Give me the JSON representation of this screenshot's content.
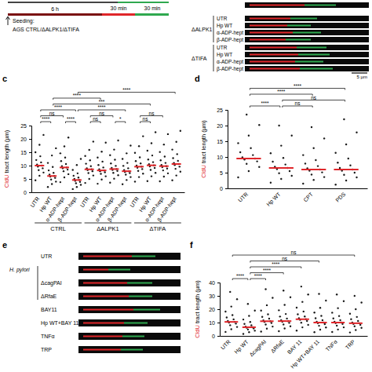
{
  "chart_data": [
    {
      "type": "scatter",
      "title": "c",
      "y_label": "CldU tract length (µm)",
      "categories": [
        "UTR",
        "Hp WT",
        "α-ADP-hept",
        "β-ADP-hept",
        "UTR",
        "Hp WT",
        "α-ADP-hept",
        "β-ADP-hept",
        "UTR",
        "Hp WT",
        "α-ADP-hept",
        "β-ADP-hept"
      ],
      "groups": [
        {
          "label": "CTRL",
          "from": 0,
          "to": 3
        },
        {
          "label": "ΔALPK1",
          "from": 4,
          "to": 7
        },
        {
          "label": "ΔTIFA",
          "from": 8,
          "to": 11
        }
      ],
      "points": [
        [
          4.5,
          6.2,
          7.4,
          8.3,
          9.0,
          9.6,
          10.0,
          10.4,
          11.2,
          12.1,
          13.5,
          15.0,
          17.8,
          21.5
        ],
        [
          2.0,
          3.1,
          4.0,
          4.8,
          5.4,
          5.9,
          6.1,
          6.6,
          7.3,
          8.2,
          9.5,
          11.0,
          13.8,
          16.5
        ],
        [
          3.8,
          5.6,
          6.8,
          7.9,
          8.5,
          9.0,
          9.3,
          9.8,
          10.6,
          11.7,
          13.0,
          14.6,
          17.2,
          20.5
        ],
        [
          1.2,
          2.0,
          2.8,
          3.4,
          3.9,
          4.3,
          4.6,
          5.0,
          5.5,
          6.2,
          7.1,
          8.4,
          10.2,
          12.5
        ],
        [
          3.5,
          5.0,
          6.3,
          7.2,
          7.9,
          8.3,
          8.6,
          9.0,
          9.8,
          10.7,
          12.0,
          13.6,
          15.9,
          19.0
        ],
        [
          3.2,
          4.8,
          6.0,
          6.9,
          7.5,
          7.9,
          8.2,
          8.6,
          9.3,
          10.2,
          11.5,
          13.0,
          15.2,
          18.6
        ],
        [
          3.6,
          5.1,
          6.4,
          7.3,
          8.0,
          8.4,
          8.7,
          9.1,
          9.9,
          10.8,
          12.2,
          13.9,
          16.0,
          19.4
        ],
        [
          3.0,
          4.6,
          5.7,
          6.6,
          7.2,
          7.6,
          7.9,
          8.3,
          9.0,
          9.9,
          11.0,
          12.5,
          14.6,
          17.5
        ],
        [
          4.0,
          5.7,
          7.0,
          8.0,
          8.7,
          9.2,
          9.6,
          10.0,
          10.8,
          11.7,
          13.1,
          14.8,
          17.3,
          21.0
        ],
        [
          4.2,
          6.0,
          7.3,
          8.4,
          9.1,
          9.7,
          10.1,
          10.5,
          11.3,
          12.3,
          13.8,
          15.6,
          18.4,
          22.5
        ],
        [
          4.1,
          5.9,
          7.1,
          8.2,
          8.9,
          9.4,
          9.8,
          10.2,
          11.0,
          12.0,
          13.4,
          15.1,
          17.9,
          21.8
        ],
        [
          4.5,
          6.3,
          7.7,
          8.8,
          9.6,
          10.2,
          10.6,
          11.0,
          11.8,
          12.8,
          14.3,
          16.0,
          18.9,
          23.0
        ]
      ],
      "medians": [
        10.0,
        6.1,
        9.3,
        4.6,
        8.6,
        8.2,
        8.7,
        7.9,
        9.6,
        10.1,
        9.8,
        10.6
      ],
      "color": "#1a1a1a",
      "ylim": [
        0,
        25
      ],
      "yticks": [
        0,
        5,
        10,
        15,
        20,
        25
      ],
      "comparisons": [
        {
          "from": 0,
          "to": 1,
          "label": "****"
        },
        {
          "from": 2,
          "to": 3,
          "label": "****"
        },
        {
          "from": 4,
          "to": 5,
          "label": "ns"
        },
        {
          "from": 6,
          "to": 7,
          "label": "*"
        },
        {
          "from": 8,
          "to": 9,
          "label": "ns"
        },
        {
          "from": 0,
          "to": 2,
          "label": "ns"
        },
        {
          "from": 4,
          "to": 6,
          "label": "ns"
        },
        {
          "from": 8,
          "to": 10,
          "label": "ns"
        },
        {
          "from": 0,
          "to": 3,
          "label": "****"
        },
        {
          "from": 1,
          "to": 9,
          "label": "***"
        },
        {
          "from": 1,
          "to": 5,
          "label": "****"
        },
        {
          "from": 3,
          "to": 7,
          "label": "****"
        },
        {
          "from": 3,
          "to": 11,
          "label": "****"
        }
      ]
    },
    {
      "type": "scatter",
      "title": "d",
      "y_label": "CldU tract length (µm)",
      "categories": [
        "UTR",
        "Hp WT",
        "CPT",
        "PDS"
      ],
      "points": [
        [
          3.5,
          5.5,
          6.8,
          7.8,
          8.6,
          9.2,
          9.5,
          9.9,
          10.6,
          11.5,
          12.8,
          14.4,
          16.8,
          20.2,
          23.5
        ],
        [
          1.8,
          3.0,
          4.0,
          4.8,
          5.5,
          6.1,
          6.5,
          6.9,
          7.6,
          8.5,
          9.7,
          11.2,
          13.6,
          16.8,
          20.0
        ],
        [
          1.5,
          2.7,
          3.6,
          4.4,
          5.1,
          5.6,
          6.0,
          6.4,
          7.1,
          7.9,
          9.0,
          10.6,
          12.8,
          15.9,
          19.5
        ],
        [
          1.2,
          2.5,
          3.5,
          4.3,
          5.0,
          5.6,
          6.0,
          6.5,
          7.3,
          8.2,
          9.5,
          11.3,
          14.0,
          17.8,
          22.0
        ]
      ],
      "medians": [
        9.5,
        6.5,
        6.0,
        6.0
      ],
      "color": "#1a1a1a",
      "ylim": [
        0,
        25
      ],
      "yticks": [
        0,
        5,
        10,
        15,
        20,
        25
      ],
      "comparisons": [
        {
          "from": 0,
          "to": 1,
          "label": "****"
        },
        {
          "from": 1,
          "to": 2,
          "label": "ns"
        },
        {
          "from": 1,
          "to": 3,
          "label": "ns"
        },
        {
          "from": 0,
          "to": 2,
          "label": "****"
        },
        {
          "from": 0,
          "to": 3,
          "label": "****"
        }
      ]
    },
    {
      "type": "scatter",
      "title": "f",
      "y_label": "CldU tract length (µm)",
      "categories": [
        "UTR",
        "Hp WT",
        "ΔcagPAI",
        "ΔRfaE",
        "BAY 11",
        "Hp WT+BAY 11",
        "TNFα",
        "TRP"
      ],
      "points": [
        [
          3.0,
          5.0,
          6.7,
          8.0,
          9.2,
          10.0,
          10.5,
          11.2,
          12.4,
          13.8,
          15.6,
          18.2,
          22.0,
          27.5,
          33.0
        ],
        [
          1.5,
          2.8,
          3.9,
          4.8,
          5.6,
          6.1,
          6.5,
          7.0,
          7.9,
          9.0,
          10.4,
          12.3,
          15.0,
          19.0,
          24.0
        ],
        [
          3.2,
          5.4,
          7.0,
          8.5,
          9.7,
          10.5,
          11.0,
          11.7,
          12.9,
          14.3,
          16.2,
          19.0,
          23.0,
          28.5,
          35.0
        ],
        [
          3.5,
          5.6,
          7.2,
          8.6,
          9.8,
          10.6,
          11.1,
          11.8,
          13.0,
          14.5,
          16.4,
          19.2,
          23.2,
          29.0,
          34.0
        ],
        [
          4.0,
          6.4,
          8.3,
          9.9,
          11.2,
          12.0,
          12.5,
          13.2,
          14.6,
          16.2,
          18.3,
          21.2,
          25.5,
          31.0,
          37.0
        ],
        [
          2.8,
          4.7,
          6.3,
          7.6,
          8.8,
          9.5,
          10.0,
          10.6,
          11.8,
          13.2,
          15.0,
          17.5,
          21.0,
          26.5,
          31.5
        ],
        [
          2.9,
          4.8,
          6.4,
          7.7,
          8.9,
          9.6,
          10.0,
          10.6,
          11.8,
          13.1,
          14.9,
          17.4,
          20.8,
          26.0,
          31.0
        ],
        [
          2.6,
          4.4,
          6.0,
          7.2,
          8.3,
          9.0,
          9.5,
          10.1,
          11.2,
          12.5,
          14.2,
          16.6,
          20.0,
          25.0,
          30.0
        ]
      ],
      "medians": [
        10.5,
        6.5,
        11.0,
        11.1,
        12.5,
        10.0,
        10.0,
        9.5
      ],
      "color": "#1a1a1a",
      "ylim": [
        0,
        40
      ],
      "yticks": [
        0,
        10,
        20,
        30,
        40
      ],
      "comparisons": [
        {
          "from": 0,
          "to": 1,
          "label": "****"
        },
        {
          "from": 1,
          "to": 2,
          "label": "****"
        },
        {
          "from": 1,
          "to": 3,
          "label": "****"
        },
        {
          "from": 1,
          "to": 4,
          "label": "****"
        },
        {
          "from": 1,
          "to": 5,
          "label": "ns"
        },
        {
          "from": 0,
          "to": 7,
          "label": "ns"
        }
      ]
    }
  ],
  "diagram": {
    "timeline": {
      "durations": [
        "30 min",
        "30 min"
      ],
      "seeding": "Seeding:",
      "seeding_time": "6 h",
      "cells": "AGS CTRL/ΔALPK1/ΔTIFA"
    },
    "fibers_top": {
      "groups": [
        {
          "label": "ΔALPK1",
          "rows": [
            "UTR",
            "Hp WT",
            "α-ADP-hept",
            "β-ADP-hept"
          ]
        },
        {
          "label": "ΔTIFA",
          "rows": [
            "UTR",
            "Hp WT",
            "α-ADP-hept",
            "β-ADP-hept"
          ]
        }
      ],
      "scale_bar": "5 µm"
    },
    "fibers_e": {
      "panel": "e",
      "rows": [
        "UTR",
        null,
        "ΔcagPAI",
        "ΔRfaE",
        "BAY11",
        "Hp WT+BAY 11",
        "TNFα",
        "TRP"
      ],
      "group": {
        "label": "H. pylori",
        "from": 1,
        "to": 3
      }
    }
  }
}
